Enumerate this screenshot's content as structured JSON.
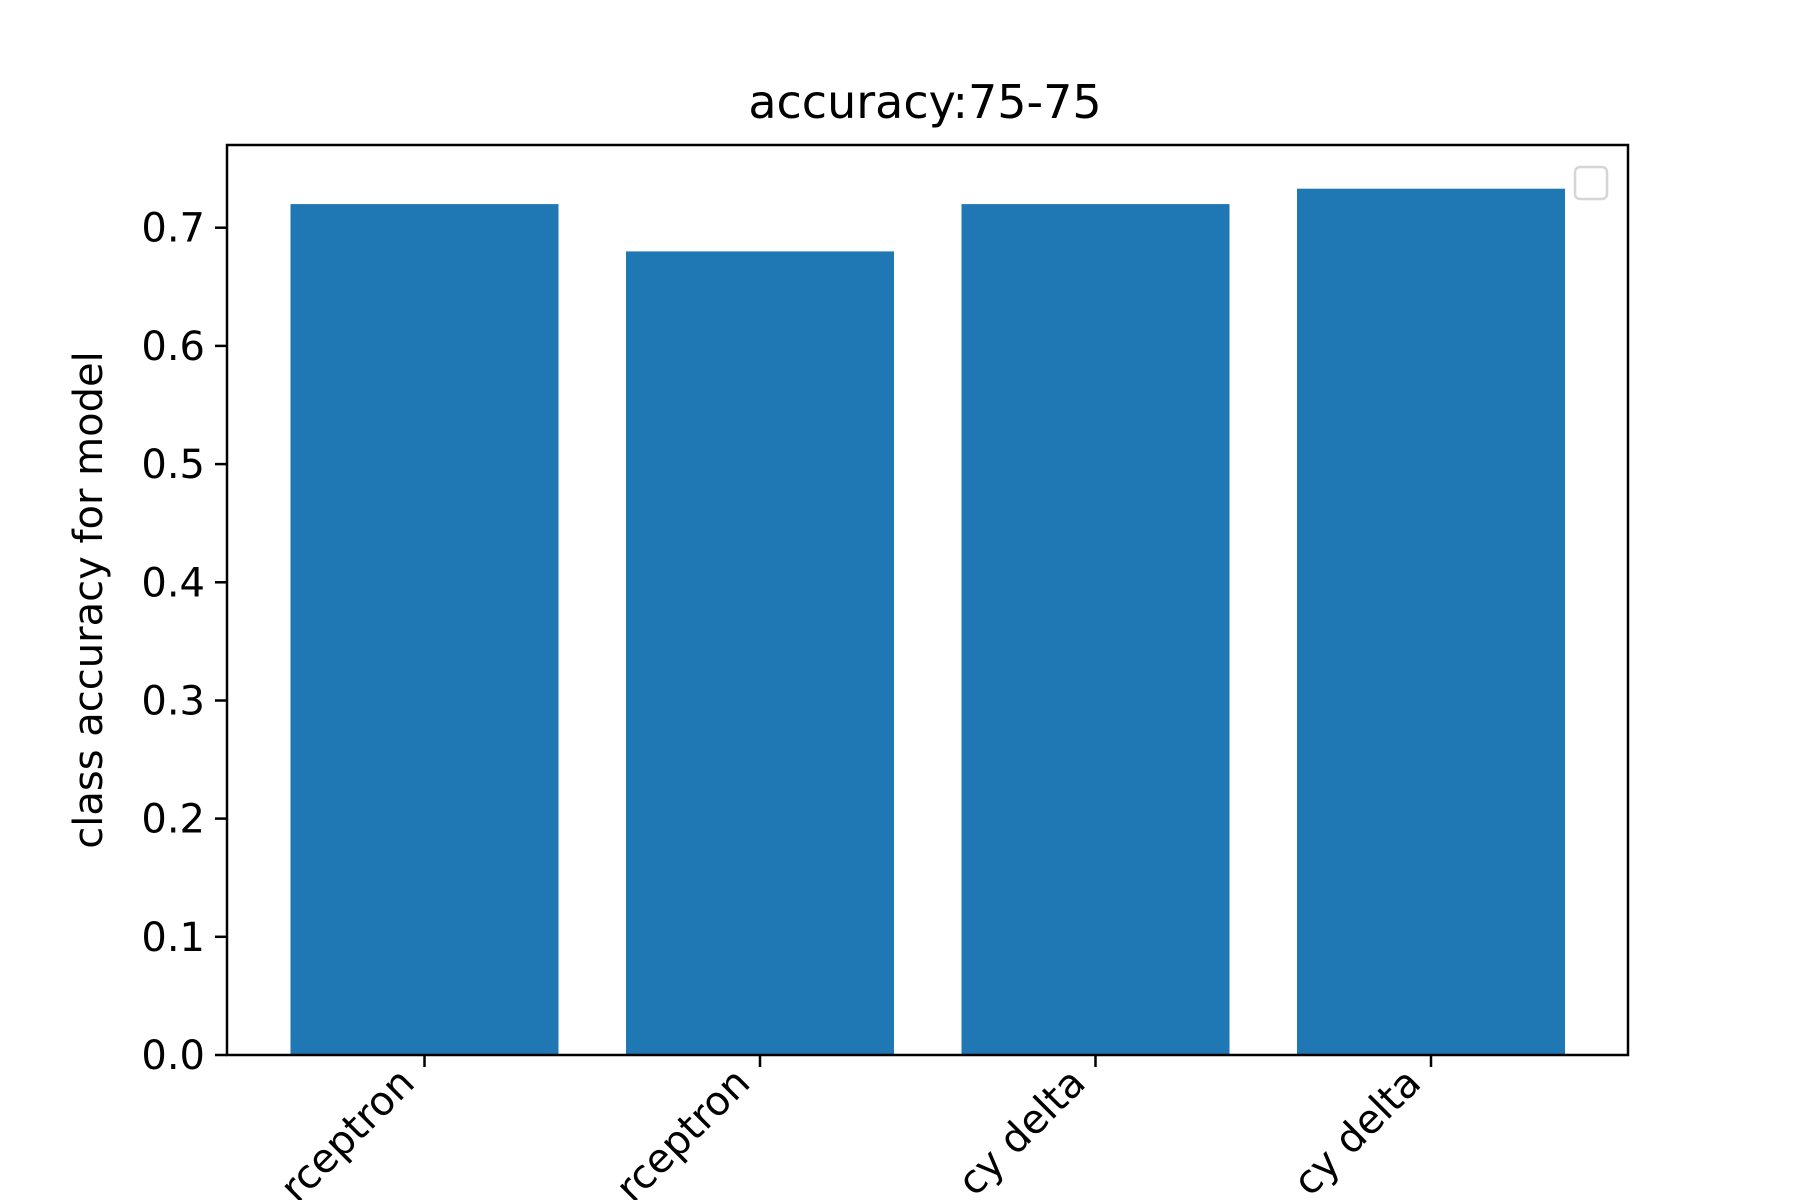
{
  "chart_data": {
    "type": "bar",
    "title": "accuracy:75-75",
    "xlabel": "",
    "ylabel": "class accuracy for model",
    "categories": [
      "perceptron",
      "perceptron",
      "delta",
      "delta"
    ],
    "category_labels_visible": [
      "rceptron",
      "rceptron",
      "cy delta",
      "cy delta"
    ],
    "values": [
      0.72,
      0.68,
      0.72,
      0.733
    ],
    "ylim": [
      0,
      0.77
    ],
    "yticks": [
      "0.0",
      "0.1",
      "0.2",
      "0.3",
      "0.4",
      "0.5",
      "0.6",
      "0.7"
    ],
    "ytick_values": [
      0,
      0.1,
      0.2,
      0.3,
      0.4,
      0.5,
      0.6,
      0.7
    ],
    "bar_color": "#1f77b4",
    "grid": false,
    "legend": "upper right (empty)"
  }
}
